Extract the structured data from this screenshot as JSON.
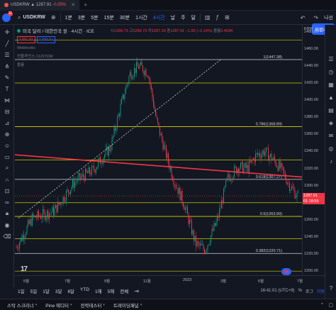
{
  "tabs": [
    {
      "title": "USDKRW",
      "price": "1287.91",
      "change": "-0.05%"
    }
  ],
  "toolbar": {
    "avatar_badge": "11",
    "symbol": "USDKRW",
    "intervals": [
      "1분",
      "3분",
      "5분",
      "15분",
      "30분",
      "1시간",
      "4시간",
      "날",
      "주",
      "달"
    ],
    "active_interval": "4시간",
    "right_label": "나선",
    "publish_label": "퍼블리쉬"
  },
  "legend": {
    "title": "미국 달러 / 대한민국 원 · 4시간 · ICE",
    "ohlc": {
      "o_label": "시",
      "o": "1289.73",
      "h_label": "고",
      "h": "1289.73",
      "l_label": "저",
      "l": "1287.19",
      "c_label": "종",
      "c": "1287.91",
      "chg": "−1.82 (−0.14%)",
      "vol_label": "볼륨",
      "vol": "2.493K"
    },
    "bid": "1287.91",
    "ask": "1288.91",
    "indicator_1": "Webhooks",
    "indicator_2": "컨플루언스 CUSTOM",
    "indicator_3": "볼륨"
  },
  "price_axis": {
    "currency": "KRW",
    "labels": [
      "1480.00",
      "1460.00",
      "1440.00",
      "1420.00",
      "1400.00",
      "1380.00",
      "1360.00",
      "1340.00",
      "1320.00",
      "1300.00",
      "1280.00",
      "1260.00",
      "1240.00",
      "1220.00",
      "1200.00"
    ],
    "current_price_tag": "1287.91",
    "countdown_tag": "01:18:59"
  },
  "fib_levels": [
    {
      "label": "1(1447.38)",
      "value": 1447.38
    },
    {
      "label": "0.786(1368.89)",
      "value": 1368.89
    },
    {
      "label": "0.618(1307.27)",
      "value": 1307.27
    },
    {
      "label": "0.5(1263.99)",
      "value": 1263.99
    },
    {
      "label": "0.382(1220.71)",
      "value": 1220.71
    }
  ],
  "time_axis": [
    "5월",
    "7월",
    "9월",
    "11월",
    "2023",
    "3월",
    "5월",
    "7월"
  ],
  "bottom_bar": {
    "ranges": [
      "1일",
      "5일",
      "1달",
      "3달",
      "6달",
      "YTD",
      "1해",
      "5해",
      "전체"
    ],
    "clock": "16:41:01 (UTC+9)",
    "pct": "%",
    "log": "로그",
    "auto": "자동"
  },
  "footer": {
    "items": [
      "스탁 스크리너",
      "Pine 에디터",
      "전략테스터",
      "트레이딩패널"
    ]
  },
  "colors": {
    "up": "#089981",
    "down": "#f23645",
    "trendline": "#f23645",
    "fib": "#d4d400",
    "accent": "#2962ff"
  },
  "chart_data": {
    "type": "candlestick",
    "ylim": [
      1196,
      1488
    ],
    "trendline_start": 1336,
    "trendline_end": 1310
  }
}
